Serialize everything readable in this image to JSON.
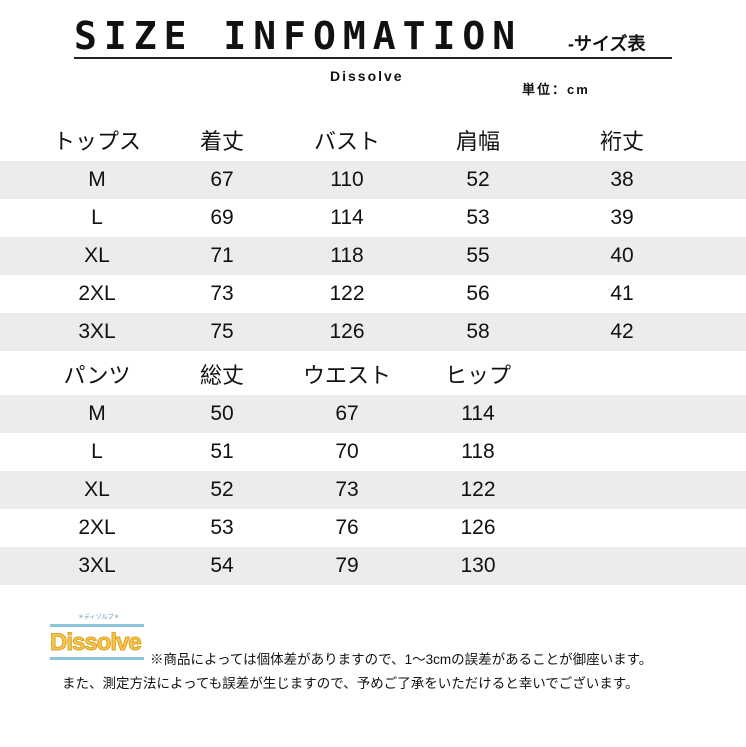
{
  "header": {
    "title": "SIZE INFOMATION",
    "subtitle": "-サイズ表",
    "brand": "Dissolve",
    "unit": "単位：cm"
  },
  "tops": {
    "headers": [
      "トップス",
      "着丈",
      "バスト",
      "肩幅",
      "裄丈"
    ],
    "rows": [
      [
        "M",
        "67",
        "110",
        "52",
        "38"
      ],
      [
        "L",
        "69",
        "114",
        "53",
        "39"
      ],
      [
        "XL",
        "71",
        "118",
        "55",
        "40"
      ],
      [
        "2XL",
        "73",
        "122",
        "56",
        "41"
      ],
      [
        "3XL",
        "75",
        "126",
        "58",
        "42"
      ]
    ]
  },
  "pants": {
    "headers": [
      "パンツ",
      "総丈",
      "ウエスト",
      "ヒップ"
    ],
    "rows": [
      [
        "M",
        "50",
        "67",
        "114"
      ],
      [
        "L",
        "51",
        "70",
        "118"
      ],
      [
        "XL",
        "52",
        "73",
        "122"
      ],
      [
        "2XL",
        "53",
        "76",
        "126"
      ],
      [
        "3XL",
        "54",
        "79",
        "130"
      ]
    ]
  },
  "logo": {
    "text": "Dissolve",
    "small": "＊ディゾルブ＊"
  },
  "notes": [
    "※商品によっては個体差がありますので、1～3cmの誤差があることが御座います。",
    "また、測定方法によっても誤差が生じますので、予めご了承をいただけると幸いでございます。"
  ],
  "colors": {
    "row_shade": "#ececec",
    "logo_text": "#f2c94c",
    "logo_bar": "#8cc4dc"
  }
}
